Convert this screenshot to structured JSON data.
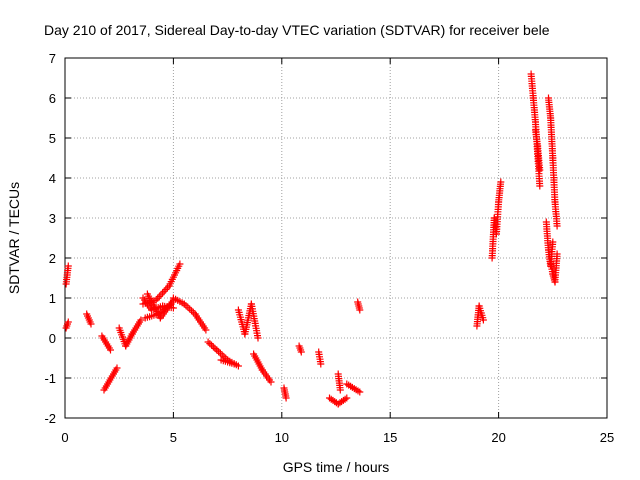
{
  "chart_data": {
    "type": "scatter",
    "title": "Day 210 of 2017, Sidereal Day-to-day VTEC variation (SDTVAR) for receiver bele",
    "xlabel": "GPS time / hours",
    "ylabel": "SDTVAR / TECUs",
    "xlim": [
      0,
      25
    ],
    "ylim": [
      -2,
      7
    ],
    "xticks": [
      0,
      5,
      10,
      15,
      20,
      25
    ],
    "yticks": [
      -2,
      -1,
      0,
      1,
      2,
      3,
      4,
      5,
      6,
      7
    ],
    "grid": true,
    "marker": "+",
    "series_color": "#ff0000",
    "segments": [
      [
        [
          0.05,
          1.35
        ],
        [
          0.15,
          1.8
        ]
      ],
      [
        [
          0.05,
          0.25
        ],
        [
          0.15,
          0.4
        ]
      ],
      [
        [
          1.0,
          0.6
        ],
        [
          1.2,
          0.35
        ]
      ],
      [
        [
          1.7,
          0.05
        ],
        [
          2.1,
          -0.3
        ]
      ],
      [
        [
          1.8,
          -1.3
        ],
        [
          2.4,
          -0.75
        ]
      ],
      [
        [
          2.5,
          0.25
        ],
        [
          2.8,
          -0.2
        ],
        [
          3.1,
          0.1
        ],
        [
          3.5,
          0.45
        ]
      ],
      [
        [
          3.6,
          1.0
        ],
        [
          4.0,
          0.7
        ],
        [
          4.5,
          0.8
        ],
        [
          5.0,
          0.75
        ]
      ],
      [
        [
          3.6,
          0.85
        ],
        [
          4.2,
          0.95
        ],
        [
          4.8,
          1.3
        ],
        [
          5.3,
          1.85
        ]
      ],
      [
        [
          3.7,
          0.5
        ],
        [
          4.3,
          0.6
        ],
        [
          4.9,
          0.85
        ]
      ],
      [
        [
          3.8,
          1.1
        ],
        [
          4.4,
          0.5
        ],
        [
          5.0,
          0.95
        ]
      ],
      [
        [
          5.0,
          1.0
        ],
        [
          5.5,
          0.85
        ],
        [
          6.0,
          0.6
        ],
        [
          6.5,
          0.2
        ]
      ],
      [
        [
          6.6,
          -0.1
        ],
        [
          7.0,
          -0.3
        ],
        [
          7.5,
          -0.55
        ],
        [
          8.0,
          -0.7
        ]
      ],
      [
        [
          7.2,
          -0.55
        ],
        [
          7.8,
          -0.65
        ]
      ],
      [
        [
          8.0,
          0.7
        ],
        [
          8.3,
          0.1
        ],
        [
          8.6,
          0.85
        ],
        [
          8.9,
          0.0
        ]
      ],
      [
        [
          8.7,
          -0.4
        ],
        [
          9.1,
          -0.8
        ],
        [
          9.5,
          -1.1
        ]
      ],
      [
        [
          10.1,
          -1.25
        ],
        [
          10.2,
          -1.5
        ]
      ],
      [
        [
          10.8,
          -0.2
        ],
        [
          10.9,
          -0.35
        ]
      ],
      [
        [
          11.7,
          -0.35
        ],
        [
          11.8,
          -0.65
        ]
      ],
      [
        [
          12.2,
          -1.5
        ],
        [
          12.6,
          -1.65
        ],
        [
          13.0,
          -1.5
        ]
      ],
      [
        [
          12.6,
          -0.9
        ],
        [
          12.7,
          -1.3
        ]
      ],
      [
        [
          13.0,
          -1.15
        ],
        [
          13.6,
          -1.35
        ]
      ],
      [
        [
          13.5,
          0.9
        ],
        [
          13.6,
          0.7
        ]
      ],
      [
        [
          19.0,
          0.3
        ],
        [
          19.1,
          0.8
        ],
        [
          19.3,
          0.45
        ]
      ],
      [
        [
          19.7,
          2.0
        ],
        [
          19.8,
          3.0
        ],
        [
          19.9,
          2.6
        ],
        [
          20.0,
          3.4
        ],
        [
          20.1,
          3.9
        ]
      ],
      [
        [
          21.5,
          6.6
        ],
        [
          21.6,
          6.0
        ],
        [
          21.7,
          5.4
        ],
        [
          21.8,
          4.6
        ],
        [
          21.9,
          3.8
        ]
      ],
      [
        [
          21.7,
          5.2
        ],
        [
          21.8,
          4.8
        ],
        [
          21.9,
          4.2
        ]
      ],
      [
        [
          22.2,
          2.9
        ],
        [
          22.3,
          2.2
        ],
        [
          22.4,
          1.8
        ],
        [
          22.5,
          2.4
        ]
      ],
      [
        [
          22.3,
          6.0
        ],
        [
          22.4,
          5.5
        ],
        [
          22.5,
          4.5
        ],
        [
          22.6,
          3.4
        ],
        [
          22.7,
          2.8
        ]
      ],
      [
        [
          22.4,
          1.9
        ],
        [
          22.5,
          1.6
        ],
        [
          22.6,
          1.4
        ],
        [
          22.7,
          2.1
        ]
      ]
    ]
  }
}
